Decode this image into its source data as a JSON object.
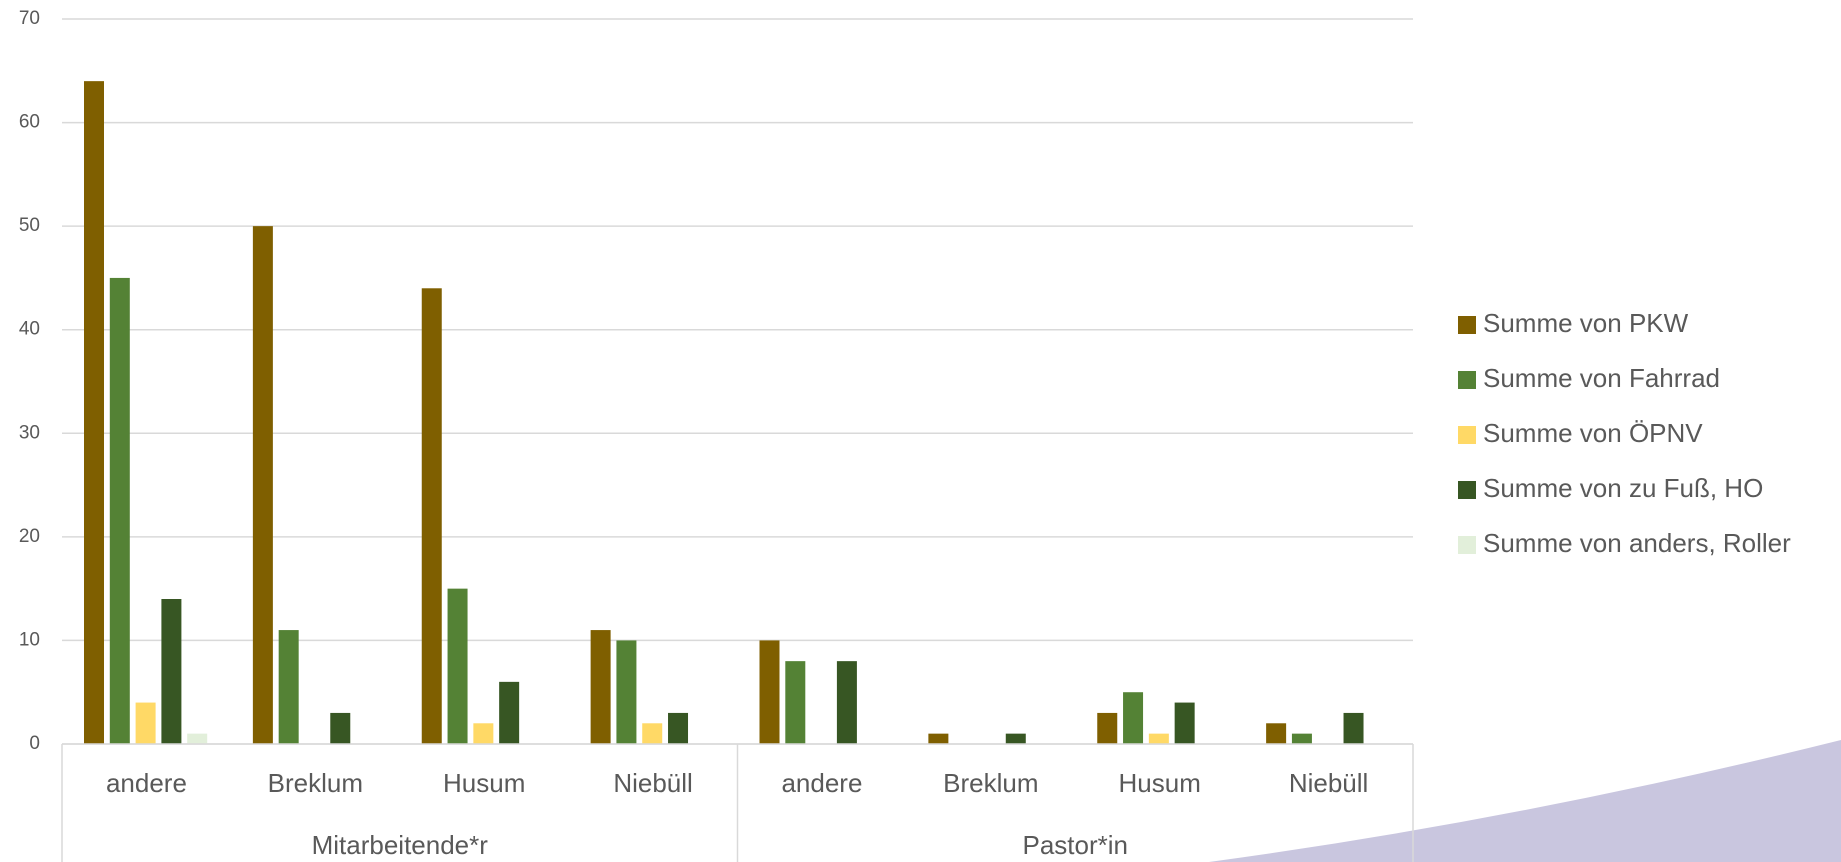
{
  "chart_data": {
    "type": "bar",
    "groups": [
      "Mitarbeitende*r",
      "Pastor*in"
    ],
    "categories": [
      "andere",
      "Breklum",
      "Husum",
      "Niebüll",
      "andere",
      "Breklum",
      "Husum",
      "Niebüll"
    ],
    "series": [
      {
        "name": "Summe von PKW",
        "color": "#7f5f00",
        "values": [
          64,
          50,
          44,
          11,
          10,
          1,
          3,
          2
        ]
      },
      {
        "name": "Summe von Fahrrad",
        "color": "#548235",
        "values": [
          45,
          11,
          15,
          10,
          8,
          null,
          5,
          1
        ]
      },
      {
        "name": "Summe von ÖPNV",
        "color": "#ffd966",
        "values": [
          4,
          null,
          2,
          2,
          null,
          null,
          1,
          null
        ]
      },
      {
        "name": "Summe von zu Fuß, HO",
        "color": "#375623",
        "values": [
          14,
          3,
          6,
          3,
          8,
          1,
          4,
          3
        ]
      },
      {
        "name": "Summe von anders, Roller",
        "color": "#e2efda",
        "values": [
          1,
          null,
          null,
          null,
          null,
          null,
          null,
          null
        ]
      }
    ],
    "ylim": [
      0,
      70
    ],
    "yticks": [
      0,
      10,
      20,
      30,
      40,
      50,
      60,
      70
    ],
    "grid": true,
    "legend": "right"
  }
}
